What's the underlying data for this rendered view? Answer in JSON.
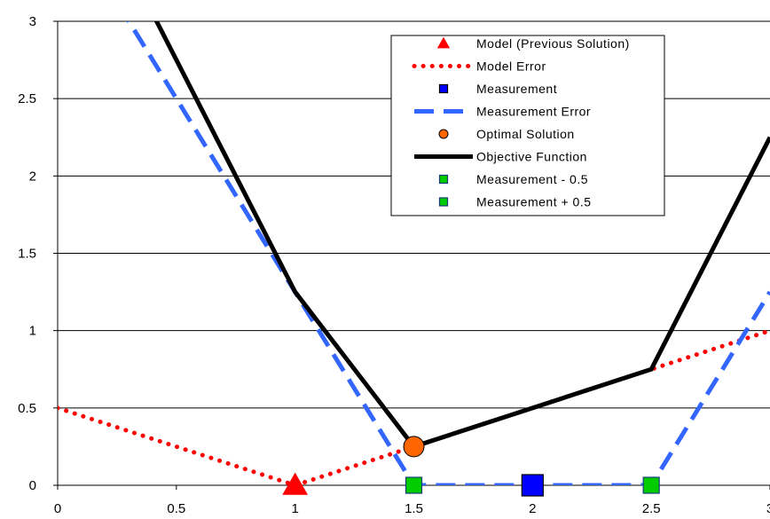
{
  "chart_data": {
    "type": "line",
    "title": "",
    "xlabel": "",
    "ylabel": "",
    "xlim": [
      0,
      3
    ],
    "ylim": [
      0,
      3
    ],
    "x_ticks": [
      "0",
      "0.5",
      "1",
      "1.5",
      "2",
      "2.5",
      "3"
    ],
    "y_ticks": [
      "0",
      "0.5",
      "1",
      "1.5",
      "2",
      "2.5",
      "3"
    ],
    "grid": "horizontal",
    "legend_position": "top-right",
    "series": [
      {
        "name": "Model (Previous Solution)",
        "kind": "marker",
        "marker": "triangle",
        "color": "#ff0000",
        "x": [
          1
        ],
        "y": [
          0
        ]
      },
      {
        "name": "Model Error",
        "kind": "line",
        "style": "dotted",
        "color": "#ff0000",
        "x": [
          0,
          1,
          1.5,
          2,
          2.5,
          3
        ],
        "y": [
          0.5,
          0,
          0.25,
          0.5,
          0.75,
          1
        ]
      },
      {
        "name": "Measurement",
        "kind": "marker",
        "marker": "square",
        "color": "#0000ff",
        "x": [
          2
        ],
        "y": [
          0
        ]
      },
      {
        "name": "Measurement Error",
        "kind": "line",
        "style": "dashed",
        "color": "#3366ff",
        "x": [
          0,
          1,
          1.5,
          2,
          2.5,
          3
        ],
        "y": [
          3.75,
          1.25,
          0,
          0,
          0,
          1.25
        ]
      },
      {
        "name": "Optimal Solution",
        "kind": "marker",
        "marker": "circle",
        "color": "#ff6600",
        "x": [
          1.5
        ],
        "y": [
          0.25
        ]
      },
      {
        "name": "Objective Function",
        "kind": "line",
        "style": "solid",
        "color": "#000000",
        "x": [
          0,
          1,
          1.5,
          2,
          2.5,
          3
        ],
        "y": [
          4.25,
          1.25,
          0.25,
          0.5,
          0.75,
          2.25
        ]
      },
      {
        "name": "Measurement - 0.5",
        "kind": "marker",
        "marker": "square",
        "color": "#00cc00",
        "x": [
          1.5
        ],
        "y": [
          0
        ]
      },
      {
        "name": "Measurement + 0.5",
        "kind": "marker",
        "marker": "square",
        "color": "#00cc00",
        "x": [
          2.5
        ],
        "y": [
          0
        ]
      }
    ]
  }
}
